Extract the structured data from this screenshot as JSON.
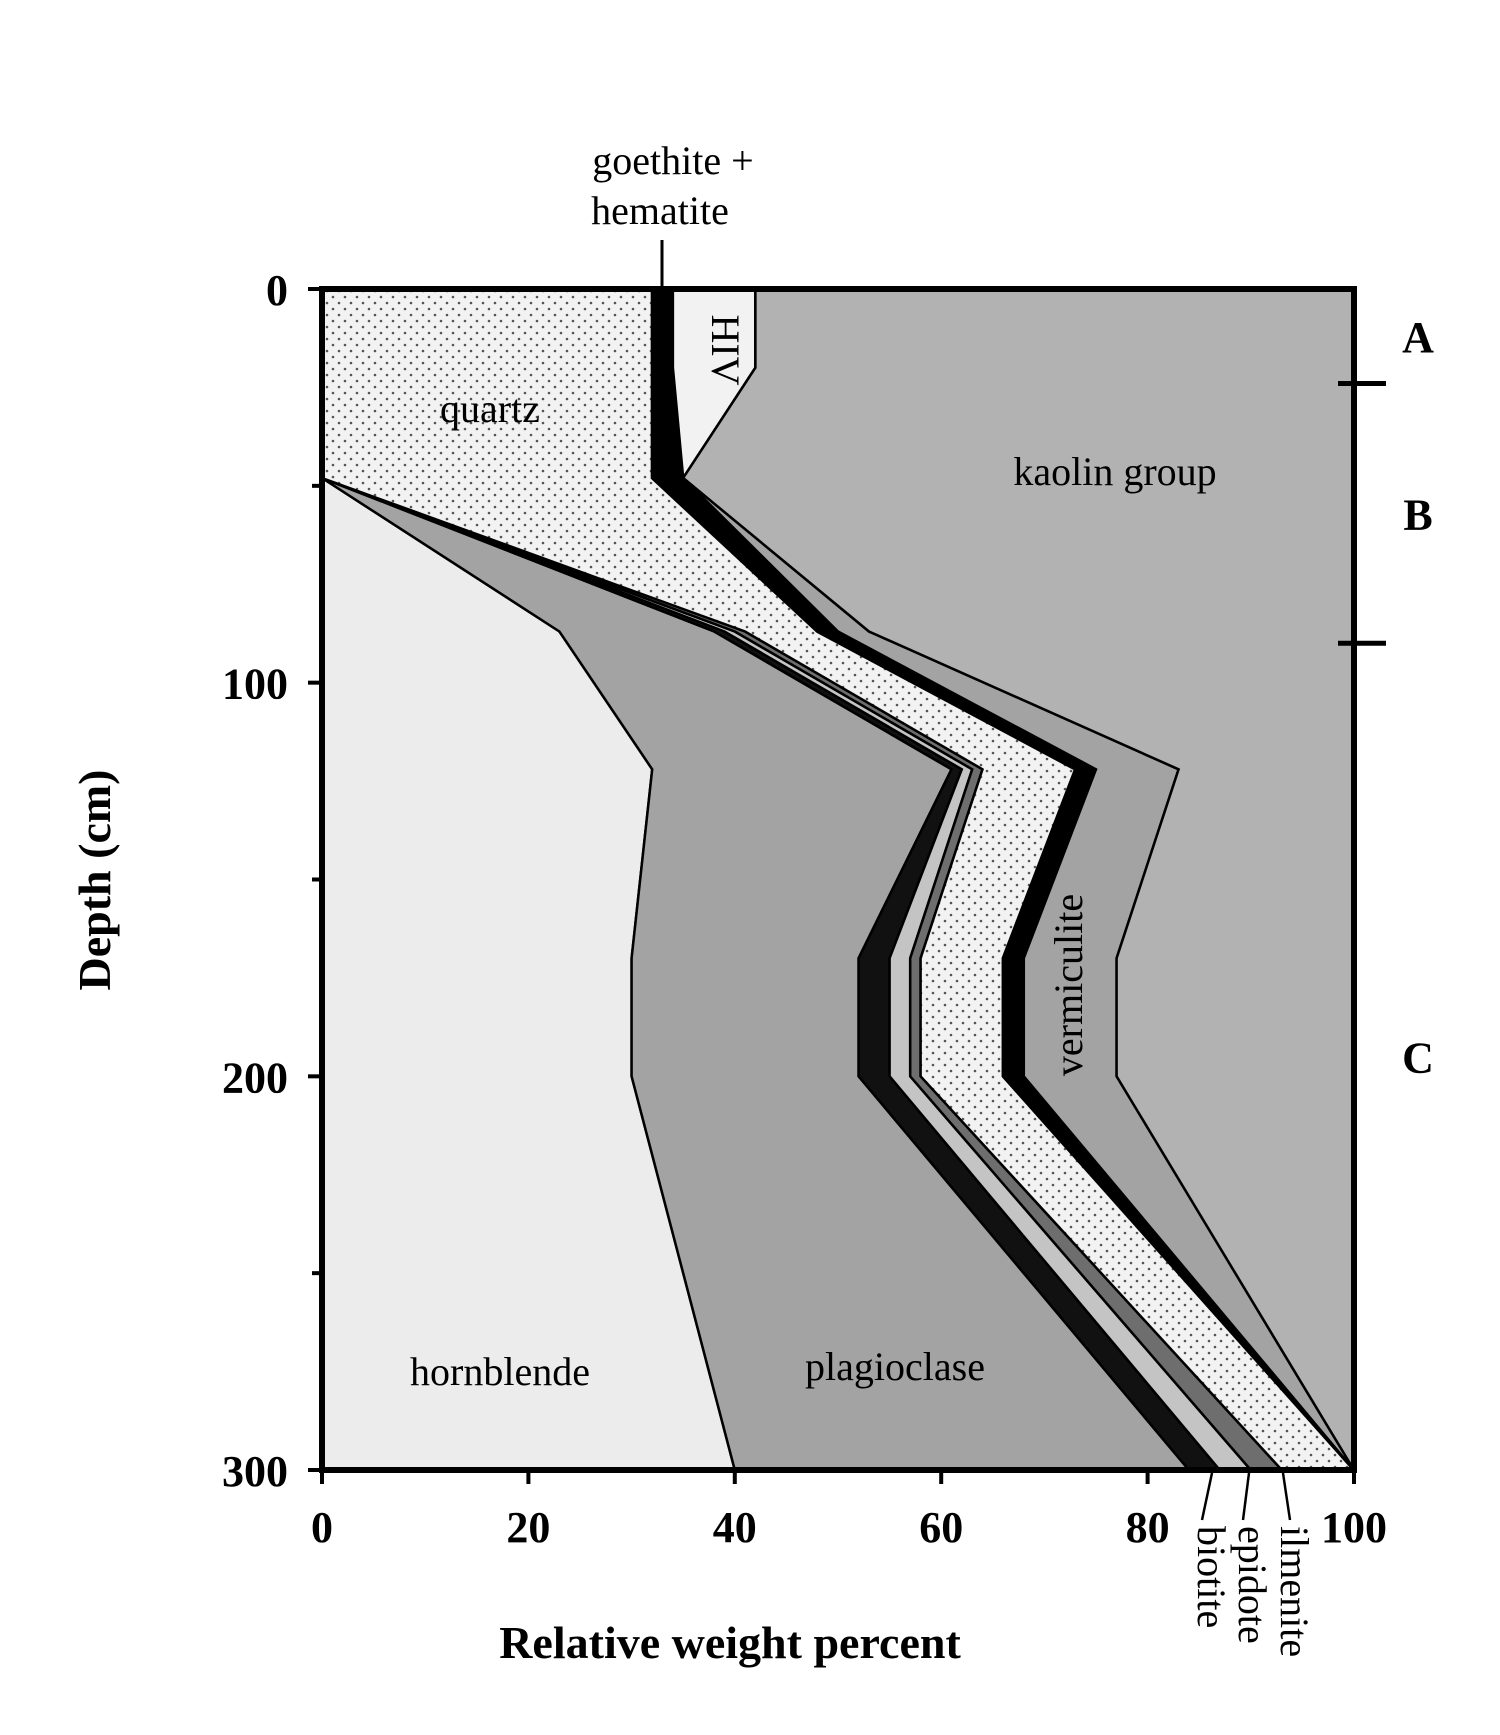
{
  "chart_data": {
    "type": "area",
    "xlabel": "Relative weight percent",
    "ylabel": "Depth (cm)",
    "xlim": [
      0,
      100
    ],
    "ylim": [
      0,
      300
    ],
    "y_inverted": true,
    "x_ticks": [
      "0",
      "20",
      "40",
      "60",
      "80",
      "100"
    ],
    "x_tick_values": [
      0,
      20,
      40,
      60,
      80,
      100
    ],
    "y_ticks": [
      "0",
      "100",
      "200",
      "300"
    ],
    "y_tick_values": [
      0,
      100,
      200,
      300
    ],
    "y_minor_tick_values": [
      50,
      150,
      250
    ],
    "depth_points": [
      0,
      20,
      48,
      87,
      122,
      170,
      200,
      300
    ],
    "cumulative_boundaries": [
      {
        "name": "hornblende",
        "upper": [
          0,
          0,
          0,
          23,
          32,
          30,
          30,
          40
        ]
      },
      {
        "name": "plagioclase",
        "upper": [
          0,
          0,
          0,
          38,
          61,
          52,
          52,
          84
        ]
      },
      {
        "name": "biotite",
        "upper": [
          0,
          0,
          0,
          39,
          62,
          55,
          55,
          87
        ]
      },
      {
        "name": "epidote",
        "upper": [
          0,
          0,
          0,
          40,
          63,
          57,
          57,
          90
        ]
      },
      {
        "name": "ilmenite",
        "upper": [
          0,
          0,
          0,
          41,
          64,
          58,
          58,
          93
        ]
      },
      {
        "name": "quartz",
        "upper": [
          32,
          32,
          32,
          48,
          73,
          66,
          66,
          100
        ]
      },
      {
        "name": "goethite + hematite",
        "upper": [
          34,
          34,
          35,
          50,
          75,
          68,
          68,
          100
        ]
      },
      {
        "name": "HIV",
        "upper": [
          42,
          42,
          35,
          50,
          75,
          68,
          68,
          100
        ]
      },
      {
        "name": "vermiculite",
        "upper": [
          42,
          42,
          35,
          53,
          83,
          77,
          77,
          100
        ]
      },
      {
        "name": "kaolin group",
        "upper": [
          100,
          100,
          100,
          100,
          100,
          100,
          100,
          100
        ]
      }
    ],
    "horizons": [
      {
        "label": "A",
        "from": 0,
        "to": 24
      },
      {
        "label": "B",
        "from": 24,
        "to": 90
      },
      {
        "label": "C",
        "from": 90,
        "to": 300
      }
    ],
    "horizon_boundaries": [
      24,
      90
    ],
    "labels": {
      "quartz": "quartz",
      "hiv": "HIV",
      "kaolin": "kaolin group",
      "vermiculite": "vermiculite",
      "hornblende": "hornblende",
      "plagioclase": "plagioclase",
      "goethite_line1": "goethite +",
      "goethite_line2": "hematite",
      "biotite": "biotite",
      "epidote": "epidote",
      "ilmenite": "ilmenite"
    },
    "colors": {
      "hornblende": "#ececec",
      "plagioclase": "#a3a3a3",
      "biotite": "#111111",
      "epidote": "#c4c4c4",
      "ilmenite": "#6e6e6e",
      "quartz": "#f2f2f2",
      "goethite_hematite": "#000000",
      "hiv": "#f2f2f2",
      "vermiculite": "#a3a3a3",
      "kaolin": "#b2b2b2"
    }
  }
}
